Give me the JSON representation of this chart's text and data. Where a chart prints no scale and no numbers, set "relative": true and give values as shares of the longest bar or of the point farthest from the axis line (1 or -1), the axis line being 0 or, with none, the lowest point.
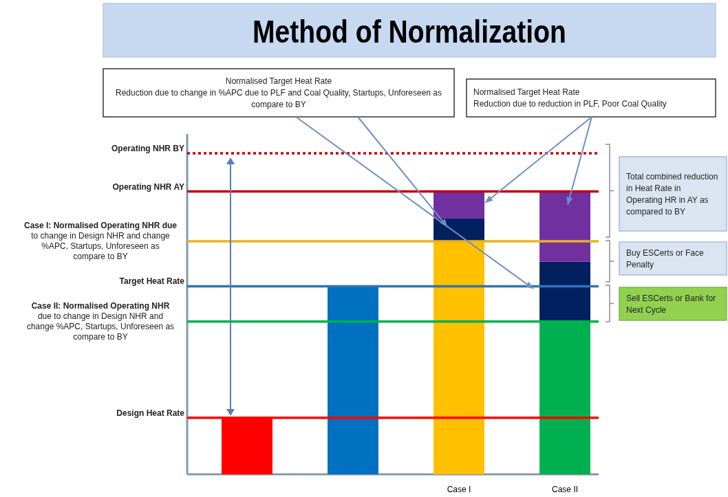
{
  "chart_data": {
    "type": "bar",
    "title": "Method of Normalization",
    "relative": true,
    "stacked": true,
    "categories": [
      null,
      null,
      "Case I",
      "Case II"
    ],
    "series": [
      {
        "colors": [
          "#ff0000",
          "#0070c0",
          "#ffc000",
          "#00b050"
        ],
        "values": [
          0.2,
          0.665,
          0.824,
          0.54
        ]
      },
      {
        "color": "#002060",
        "values": [
          null,
          null,
          0.08,
          0.212
        ]
      },
      {
        "color": "#7030a0",
        "values": [
          null,
          null,
          0.096,
          0.248
        ]
      }
    ],
    "ref_lines": [
      {
        "axis": "y",
        "value": 1.135,
        "label": "Operating NHR BY",
        "color": "#c00000",
        "line_style": "dotted"
      },
      {
        "axis": "y",
        "value": 1.0,
        "label": "Operating NHR AY",
        "color": "#c00000",
        "line_style": "solid"
      },
      {
        "axis": "y",
        "value": 0.824,
        "label": "Case I: Normalised Operating NHR due to change in Design NHR and change %APC, Startups, Unforeseen as compare to BY",
        "color": "#e6b422",
        "line_style": "solid"
      },
      {
        "axis": "y",
        "value": 0.665,
        "label": "Target Heat Rate",
        "color": "#2e75b6",
        "line_style": "solid"
      },
      {
        "axis": "y",
        "value": 0.54,
        "label": "Case II: Normalised Operating NHR due to change in Design NHR and change %APC, Startups, Unforeseen as compare to BY",
        "color": "#00b050",
        "line_style": "solid"
      },
      {
        "axis": "y",
        "value": 0.2,
        "label": "Design Heat Rate",
        "color": "#ff0000",
        "line_style": "solid"
      }
    ],
    "annotations": [
      "Normalised Target Heat Rate\nReduction due to change in %APC due to PLF and Coal Quality, Startups, Unforeseen as compare to BY",
      "Normalised Target Heat Rate\nReduction due to reduction in PLF, Poor Coal Quality",
      "Total combined reduction in Heat Rate in Operating HR in AY as compared to BY",
      "Buy ESCerts or Face Penalty",
      "Sell ESCerts or Bank for Next Cycle"
    ]
  }
}
